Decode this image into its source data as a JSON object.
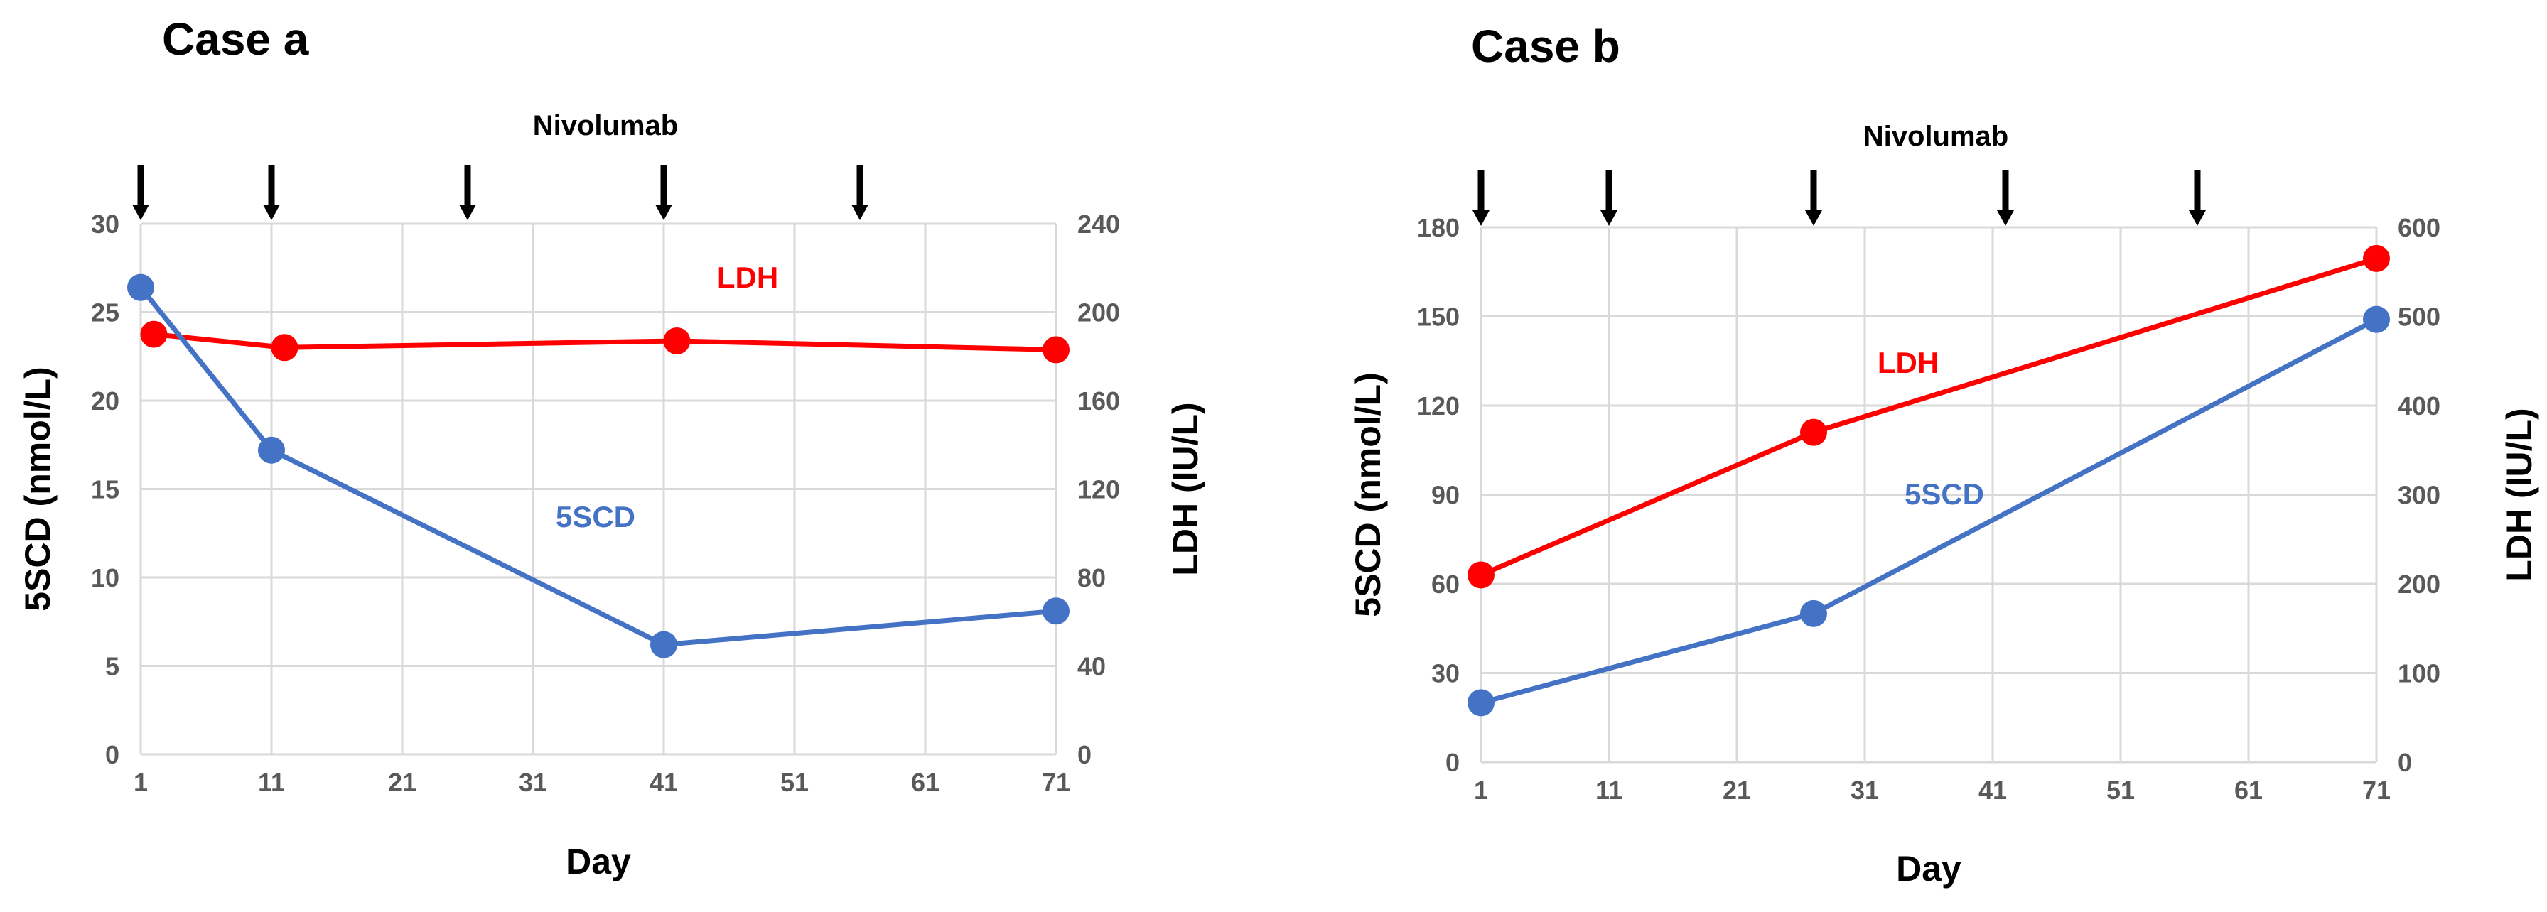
{
  "panels": [
    {
      "title": "Case a",
      "chart_data": {
        "type": "line",
        "title": "Case a",
        "xlabel": "Day",
        "ylabel_left": "5SCD (nmol/L)",
        "ylabel_right": "LDH (IU/L)",
        "x_ticks": [
          1,
          11,
          21,
          31,
          41,
          51,
          61,
          71
        ],
        "xlim": [
          1,
          71
        ],
        "ylim_left": [
          0,
          30
        ],
        "y_ticks_left": [
          0,
          5,
          10,
          15,
          20,
          25,
          30
        ],
        "ylim_right": [
          0,
          240
        ],
        "y_ticks_right": [
          0,
          40,
          80,
          120,
          160,
          200,
          240
        ],
        "grid": true,
        "series": [
          {
            "name": "LDH",
            "axis": "right",
            "color": "#ff0000",
            "x": [
              2,
              12,
              42,
              71
            ],
            "y": [
              190,
              184,
              187,
              183
            ]
          },
          {
            "name": "5SCD",
            "axis": "left",
            "color": "#4472c4",
            "x": [
              1,
              11,
              41,
              71
            ],
            "y": [
              26.4,
              17.2,
              6.2,
              8.1
            ]
          }
        ],
        "annotation": {
          "text": "Nivolumab",
          "arrow_days": [
            1,
            11,
            26,
            41,
            56
          ]
        }
      }
    },
    {
      "title": "Case b",
      "chart_data": {
        "type": "line",
        "title": "Case b",
        "xlabel": "Day",
        "ylabel_left": "5SCD (nmol/L)",
        "ylabel_right": "LDH (IU/L)",
        "x_ticks": [
          1,
          11,
          21,
          31,
          41,
          51,
          61,
          71
        ],
        "xlim": [
          1,
          71
        ],
        "ylim_left": [
          0,
          180
        ],
        "y_ticks_left": [
          0,
          30,
          60,
          90,
          120,
          150,
          180
        ],
        "ylim_right": [
          0,
          600
        ],
        "y_ticks_right": [
          0,
          100,
          200,
          300,
          400,
          500,
          600
        ],
        "grid": true,
        "series": [
          {
            "name": "LDH",
            "axis": "right",
            "color": "#ff0000",
            "x": [
              1,
              27,
              71
            ],
            "y": [
              210,
              370,
              565
            ]
          },
          {
            "name": "5SCD",
            "axis": "left",
            "color": "#4472c4",
            "x": [
              1,
              27,
              71
            ],
            "y": [
              20,
              50,
              149
            ]
          }
        ],
        "annotation": {
          "text": "Nivolumab",
          "arrow_days": [
            1,
            11,
            27,
            42,
            57
          ]
        }
      }
    }
  ]
}
